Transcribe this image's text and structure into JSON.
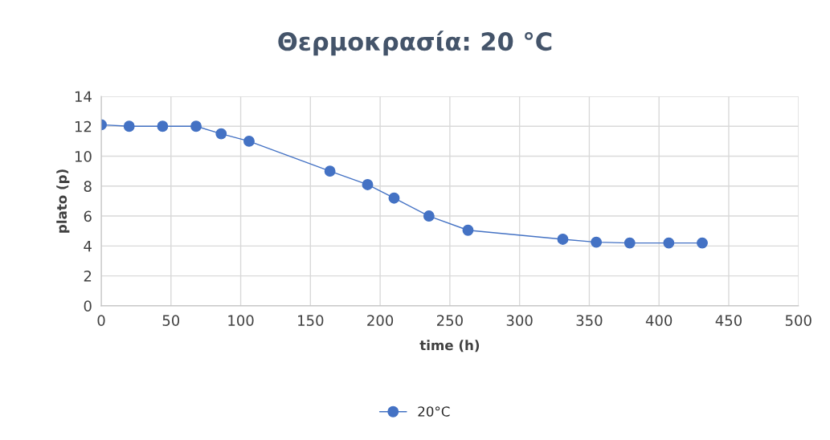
{
  "chart_data": {
    "type": "line",
    "title": "Θερμοκρασία: 20 °C",
    "xlabel": "time (h)",
    "ylabel": "plato (p)",
    "series": [
      {
        "name": "20°C",
        "color": "#4472c4",
        "x": [
          0,
          20,
          44,
          68,
          86,
          106,
          164,
          191,
          210,
          235,
          263,
          331,
          355,
          379,
          407,
          431
        ],
        "values": [
          12.1,
          12.0,
          12.0,
          12.0,
          11.5,
          11.0,
          9.0,
          8.1,
          7.2,
          6.0,
          5.05,
          4.45,
          4.25,
          4.2,
          4.2,
          4.2
        ]
      }
    ],
    "xlim": [
      0,
      500
    ],
    "xticks": [
      0,
      50,
      100,
      150,
      200,
      250,
      300,
      350,
      400,
      450,
      500
    ],
    "ylim": [
      0,
      14
    ],
    "yticks": [
      0,
      2,
      4,
      6,
      8,
      10,
      12,
      14
    ],
    "grid": true,
    "legend": "bottom",
    "marker": "circle",
    "line_style": "solid"
  }
}
